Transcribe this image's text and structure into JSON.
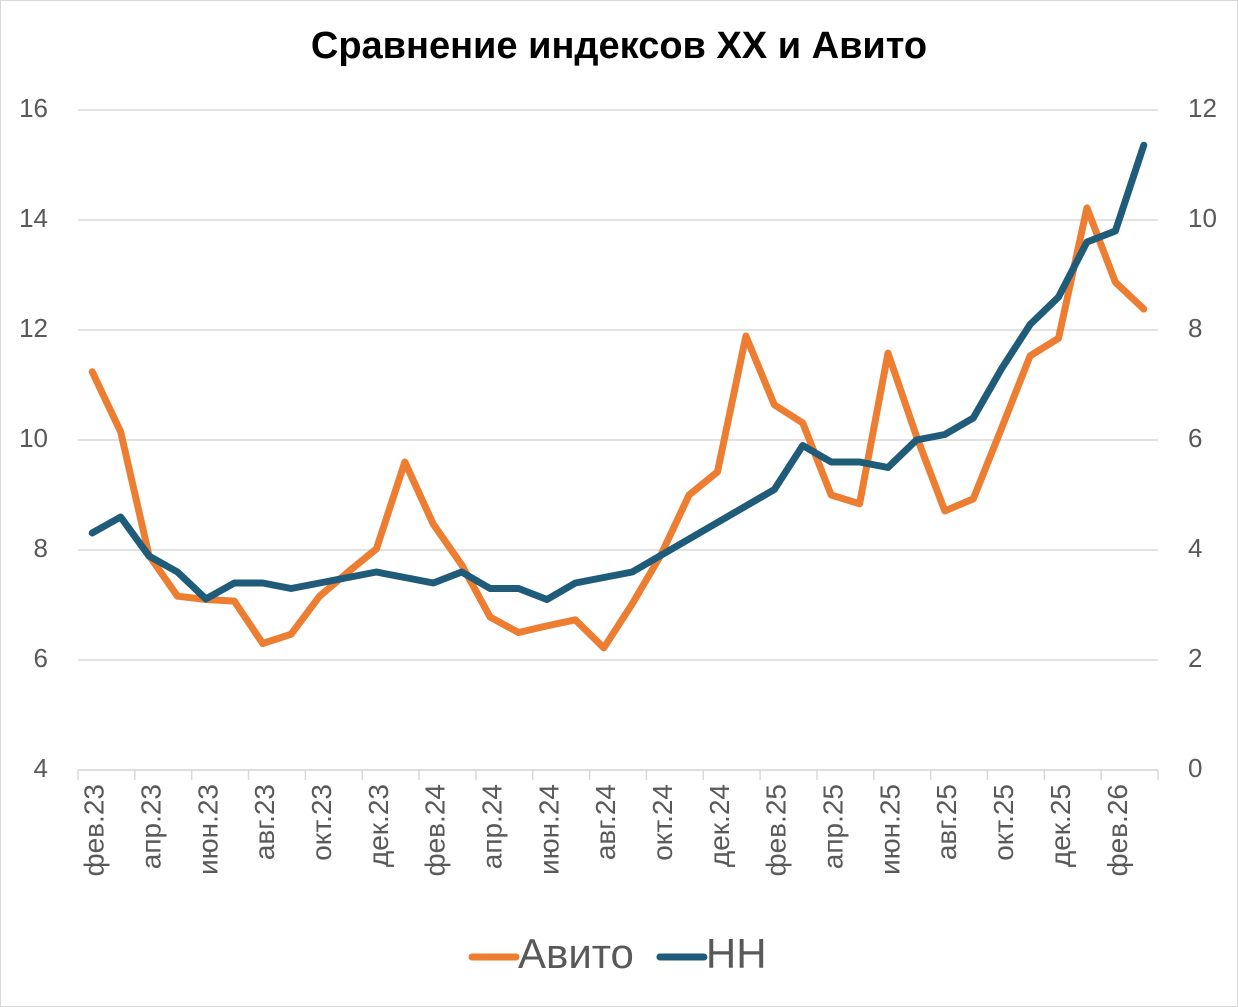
{
  "chart_data": {
    "type": "line",
    "title": "Сравнение индексов ХХ и Авито",
    "categories": [
      "фев.23",
      null,
      "апр.23",
      null,
      "июн.23",
      null,
      "авг.23",
      null,
      "окт.23",
      null,
      "дек.23",
      null,
      "фев.24",
      null,
      "апр.24",
      null,
      "июн.24",
      null,
      "авг.24",
      null,
      "окт.24",
      null,
      "дек.24",
      null,
      "фев.25",
      null,
      "апр.25",
      null,
      "июн.25",
      null,
      "авг.25",
      null,
      "окт.25",
      null,
      "дек.25",
      null,
      "фев.26",
      null
    ],
    "series": [
      {
        "name": "Авито",
        "color": "#ed7d31",
        "axis": "y",
        "values": [
          11.24,
          10.15,
          7.9,
          7.16,
          7.1,
          7.07,
          6.3,
          6.47,
          7.16,
          7.6,
          8.02,
          9.6,
          8.47,
          7.73,
          6.78,
          6.5,
          6.62,
          6.73,
          6.22,
          7.02,
          7.9,
          9.0,
          9.42,
          11.89,
          10.64,
          10.31,
          9.0,
          8.84,
          11.58,
          10.07,
          8.71,
          8.93,
          10.22,
          11.53,
          11.85,
          14.22,
          12.87,
          12.38
        ]
      },
      {
        "name": "НН",
        "color": "#1f5c7a",
        "axis": "y2",
        "values": [
          4.31,
          4.6,
          3.89,
          3.6,
          3.11,
          3.4,
          3.4,
          3.3,
          3.4,
          3.5,
          3.6,
          3.5,
          3.4,
          3.6,
          3.3,
          3.3,
          3.1,
          3.4,
          3.5,
          3.6,
          3.9,
          4.2,
          4.5,
          4.8,
          5.1,
          5.9,
          5.6,
          5.6,
          5.5,
          6.0,
          6.1,
          6.4,
          7.3,
          8.1,
          8.6,
          9.6,
          9.8,
          11.36
        ]
      }
    ],
    "ylim": [
      4,
      16
    ],
    "yticks": [
      4,
      6,
      8,
      10,
      12,
      14,
      16
    ],
    "y2lim": [
      0,
      12
    ],
    "y2ticks": [
      0,
      2,
      4,
      6,
      8,
      10,
      12
    ],
    "grid": true,
    "legend": "bottom"
  }
}
